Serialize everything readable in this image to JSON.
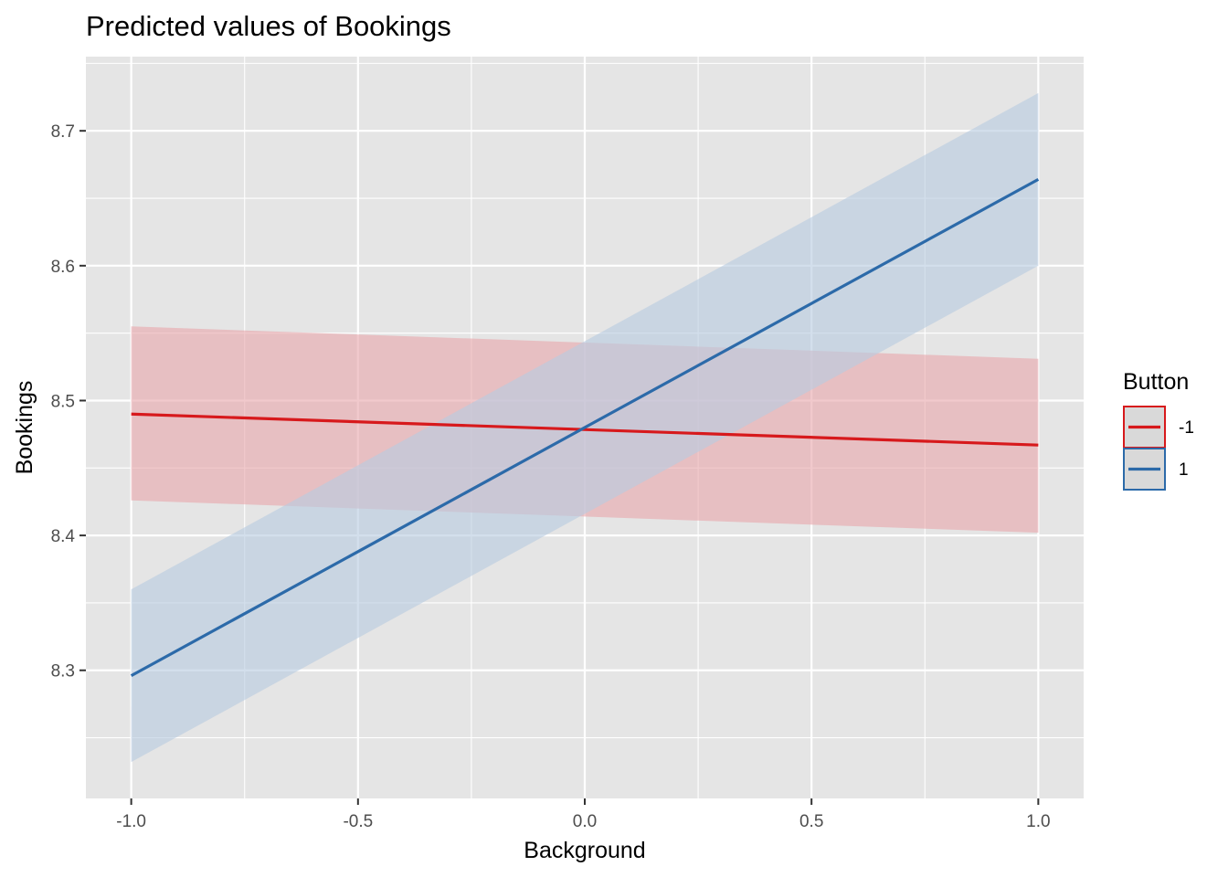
{
  "chart_data": {
    "type": "line",
    "title": "Predicted values of Bookings",
    "xlabel": "Background",
    "ylabel": "Bookings",
    "xlim": [
      -1.1,
      1.1
    ],
    "ylim": [
      8.205,
      8.755
    ],
    "x_ticks": [
      -1.0,
      -0.5,
      0.0,
      0.5,
      1.0
    ],
    "x_tick_labels": [
      "-1.0",
      "-0.5",
      "0.0",
      "0.5",
      "1.0"
    ],
    "y_ticks": [
      8.3,
      8.4,
      8.5,
      8.6,
      8.7
    ],
    "y_tick_labels": [
      "8.3",
      "8.4",
      "8.5",
      "8.6",
      "8.7"
    ],
    "grid": true,
    "background": "#e5e5e5",
    "legend": {
      "title": "Button",
      "placement": "right"
    },
    "series": [
      {
        "name": "-1",
        "color": "#d7191c",
        "fill": "#e8a8ad",
        "x": [
          -1.0,
          1.0
        ],
        "y": [
          8.49,
          8.467
        ],
        "lower": [
          8.426,
          8.402
        ],
        "upper": [
          8.555,
          8.531
        ]
      },
      {
        "name": "1",
        "color": "#2c6aa9",
        "fill": "#b8cbe0",
        "x": [
          -1.0,
          1.0
        ],
        "y": [
          8.296,
          8.664
        ],
        "lower": [
          8.232,
          8.6
        ],
        "upper": [
          8.36,
          8.728
        ]
      }
    ]
  }
}
